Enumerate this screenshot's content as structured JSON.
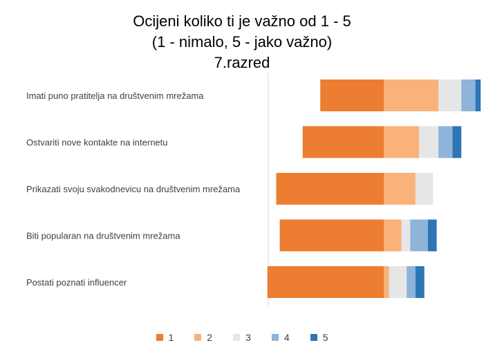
{
  "title": {
    "line1": "Ocijeni koliko ti je važno od 1 - 5",
    "line2": "(1 - nimalo, 5 - jako važno)",
    "line3": "7.razred"
  },
  "chart_data": {
    "type": "bar",
    "orientation": "horizontal",
    "stacked": true,
    "diverging": true,
    "categories": [
      "Imati puno pratitelja na društvenim mrežama",
      "Ostvariti nove kontakte na internetu",
      "Prikazati svoju svakodnevicu na društvenim mrežama",
      "Biti popularan na društvenim mrežama",
      "Postati poznati influencer"
    ],
    "series": [
      {
        "name": "1",
        "color": "#ED7D31",
        "values": [
          36,
          46,
          61,
          59,
          66
        ]
      },
      {
        "name": "2",
        "color": "#F8B27A",
        "values": [
          31,
          20,
          18,
          10,
          3
        ]
      },
      {
        "name": "3",
        "color": "#E7E6E6",
        "values": [
          13,
          11,
          10,
          5,
          10
        ]
      },
      {
        "name": "4",
        "color": "#8EB4D9",
        "values": [
          8,
          8,
          0,
          10,
          5
        ]
      },
      {
        "name": "5",
        "color": "#2E75B6",
        "values": [
          3,
          5,
          0,
          5,
          5
        ]
      }
    ],
    "legend_position": "bottom",
    "grid": false
  }
}
